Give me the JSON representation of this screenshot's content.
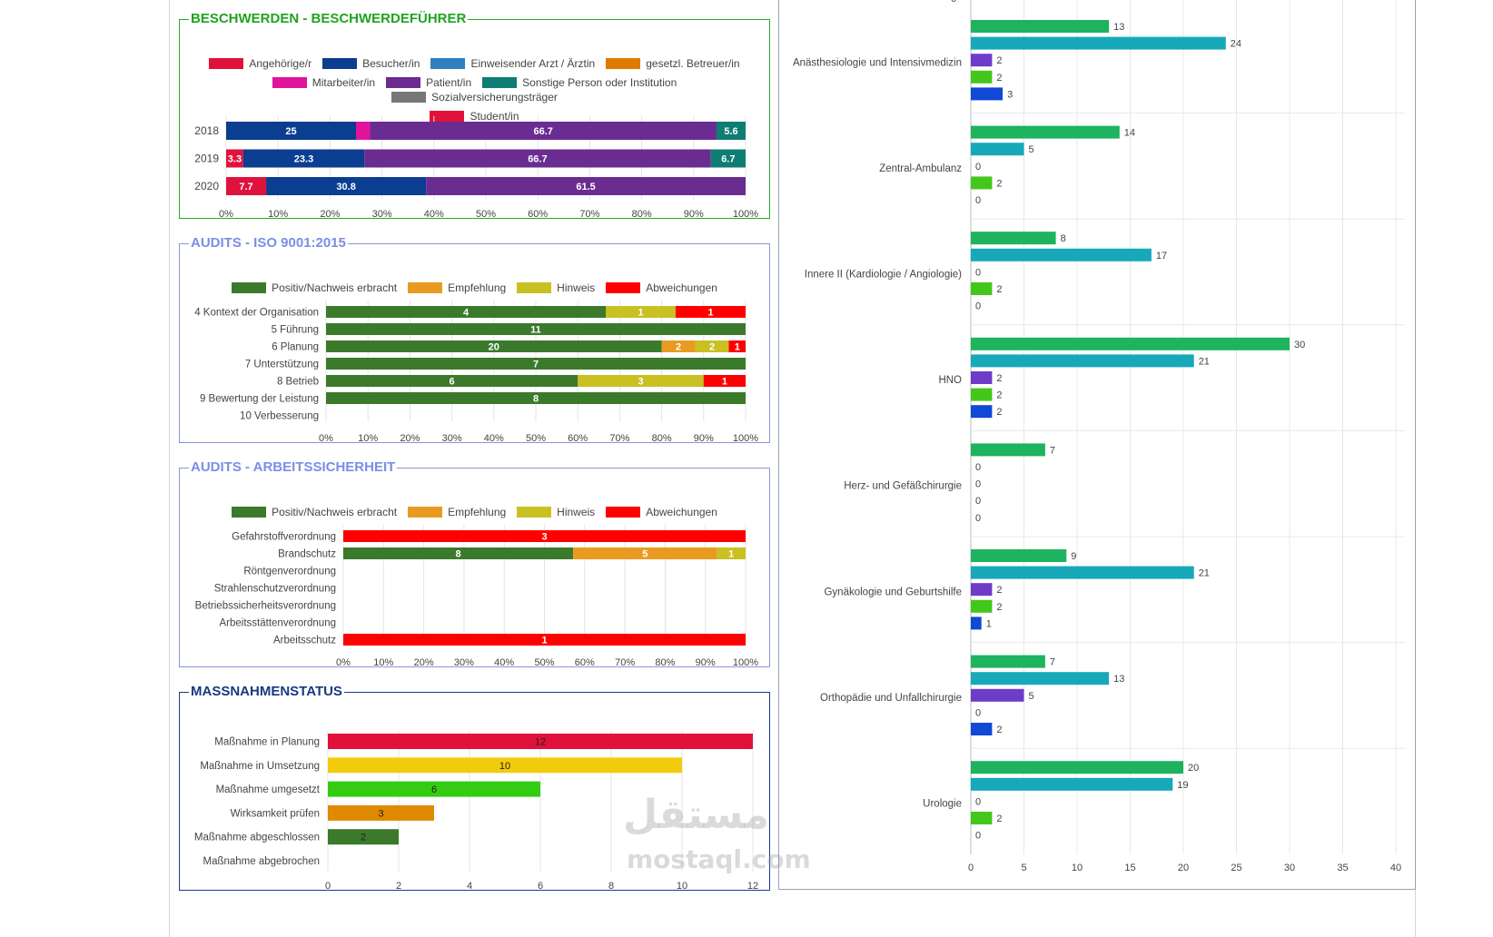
{
  "chart_data": [
    {
      "id": "complaints",
      "type": "bar",
      "orientation": "horizontal",
      "stacked": "percent",
      "title": "BESCHWERDEN - BESCHWERDEFÜHRER",
      "categories": [
        "2018",
        "2019",
        "2020"
      ],
      "xlim": [
        0,
        100
      ],
      "ticks": [
        "0%",
        "10%",
        "20%",
        "30%",
        "40%",
        "50%",
        "60%",
        "70%",
        "80%",
        "90%",
        "100%"
      ],
      "legend_position": "top",
      "series": [
        {
          "name": "Angehörige/r",
          "color": "#e0123c",
          "values": [
            0,
            3.3,
            7.7
          ],
          "labels": [
            "",
            "3.3",
            "7.7"
          ]
        },
        {
          "name": "Besucher/in",
          "color": "#0b3d91",
          "values": [
            25,
            23.3,
            30.8
          ],
          "labels": [
            "25",
            "23.3",
            "30.8"
          ]
        },
        {
          "name": "Einweisender Arzt / Ärztin",
          "color": "#2f7fc1",
          "values": [
            0,
            0,
            0
          ],
          "labels": [
            "",
            "",
            ""
          ]
        },
        {
          "name": "gesetzl. Betreuer/in",
          "color": "#e07b00",
          "values": [
            0,
            0,
            0
          ],
          "labels": [
            "",
            "",
            ""
          ]
        },
        {
          "name": "Mitarbeiter/in",
          "color": "#e0139b",
          "values": [
            2.7,
            0,
            0
          ],
          "labels": [
            "",
            "",
            ""
          ]
        },
        {
          "name": "Patient/in",
          "color": "#6b2c91",
          "values": [
            66.7,
            66.7,
            61.5
          ],
          "labels": [
            "66.7",
            "66.7",
            "61.5"
          ]
        },
        {
          "name": "Sonstige Person oder Institution",
          "color": "#0e7d74",
          "values": [
            5.6,
            6.7,
            0
          ],
          "labels": [
            "5.6",
            "6.7",
            ""
          ]
        },
        {
          "name": "Sozialversicherungsträger",
          "color": "#777777",
          "values": [
            0,
            0,
            0
          ],
          "labels": [
            "",
            "",
            ""
          ]
        },
        {
          "name": "Student/in",
          "color": "#e0123c",
          "values": [
            0,
            0,
            0
          ],
          "labels": [
            "",
            "",
            ""
          ]
        }
      ]
    },
    {
      "id": "iso",
      "type": "bar",
      "orientation": "horizontal",
      "stacked": "percent",
      "title": "AUDITS - ISO 9001:2015",
      "categories": [
        "4 Kontext der Organisation",
        "5 Führung",
        "6 Planung",
        "7 Unterstützung",
        "8 Betrieb",
        "9 Bewertung der Leistung",
        "10 Verbesserung"
      ],
      "xlim": [
        0,
        100
      ],
      "ticks": [
        "0%",
        "10%",
        "20%",
        "30%",
        "40%",
        "50%",
        "60%",
        "70%",
        "80%",
        "90%",
        "100%"
      ],
      "legend_position": "top",
      "series": [
        {
          "name": "Positiv/Nachweis erbracht",
          "color": "#3b7a2a",
          "values": [
            4,
            11,
            20,
            7,
            6,
            8,
            0
          ]
        },
        {
          "name": "Empfehlung",
          "color": "#e99b21",
          "values": [
            0,
            0,
            2,
            0,
            0,
            0,
            0
          ]
        },
        {
          "name": "Hinweis",
          "color": "#c9c022",
          "values": [
            1,
            0,
            2,
            0,
            3,
            0,
            0
          ]
        },
        {
          "name": "Abweichungen",
          "color": "#ff0000",
          "values": [
            1,
            0,
            1,
            0,
            1,
            0,
            0
          ]
        }
      ]
    },
    {
      "id": "safety",
      "type": "bar",
      "orientation": "horizontal",
      "stacked": "percent",
      "title": "AUDITS - ARBEITSSICHERHEIT",
      "categories": [
        "Gefahrstoffverordnung",
        "Brandschutz",
        "Röntgenverordnung",
        "Strahlenschutzverordnung",
        "Betriebssicherheitsverordnung",
        "Arbeitsstättenverordnung",
        "Arbeitsschutz"
      ],
      "xlim": [
        0,
        100
      ],
      "ticks": [
        "0%",
        "10%",
        "20%",
        "30%",
        "40%",
        "50%",
        "60%",
        "70%",
        "80%",
        "90%",
        "100%"
      ],
      "legend_position": "top",
      "series": [
        {
          "name": "Positiv/Nachweis erbracht",
          "color": "#3b7a2a",
          "values": [
            0,
            8,
            0,
            0,
            0,
            0,
            0
          ]
        },
        {
          "name": "Empfehlung",
          "color": "#e99b21",
          "values": [
            0,
            5,
            0,
            0,
            0,
            0,
            0
          ]
        },
        {
          "name": "Hinweis",
          "color": "#c9c022",
          "values": [
            0,
            1,
            0,
            0,
            0,
            0,
            0
          ]
        },
        {
          "name": "Abweichungen",
          "color": "#ff0000",
          "values": [
            3,
            0,
            0,
            0,
            0,
            0,
            1
          ]
        }
      ]
    },
    {
      "id": "measures",
      "type": "bar",
      "orientation": "horizontal",
      "title": "MASSNAHMENSTATUS",
      "categories": [
        "Maßnahme in Planung",
        "Maßnahme in Umsetzung",
        "Maßnahme umgesetzt",
        "Wirksamkeit prüfen",
        "Maßnahme abgeschlossen",
        "Maßnahme abgebrochen"
      ],
      "values": [
        12,
        10,
        6,
        3,
        2,
        0
      ],
      "colors": [
        "#e0123c",
        "#f2cc0c",
        "#33cc11",
        "#e08a00",
        "#3b7a2a",
        "#999999"
      ],
      "xlim": [
        0,
        12
      ],
      "ticks": [
        "0",
        "2",
        "4",
        "6",
        "8",
        "10",
        "12"
      ]
    },
    {
      "id": "departments",
      "type": "bar",
      "orientation": "horizontal",
      "grouped": true,
      "categories": [
        "Anästhesiologie und Intensivmedizin",
        "Zentral-Ambulanz",
        "Innere II (Kardiologie / Angiologie)",
        "HNO",
        "Herz- und Gefäßchirurgie",
        "Gynäkologie und Geburtshilfe",
        "Orthopädie und Unfallchirurgie",
        "Urologie"
      ],
      "series_colors": [
        "#1db35f",
        "#17a9b9",
        "#6f3bc9",
        "#44c71b",
        "#1049d6"
      ],
      "values": [
        [
          13,
          24,
          2,
          2,
          3
        ],
        [
          14,
          5,
          0,
          2,
          0
        ],
        [
          8,
          17,
          0,
          2,
          0
        ],
        [
          30,
          21,
          2,
          2,
          2
        ],
        [
          7,
          0,
          0,
          0,
          0
        ],
        [
          9,
          21,
          2,
          2,
          1
        ],
        [
          7,
          13,
          5,
          0,
          2
        ],
        [
          20,
          19,
          0,
          2,
          0
        ]
      ],
      "xlim": [
        0,
        40
      ],
      "ticks": [
        "0",
        "5",
        "10",
        "15",
        "20",
        "25",
        "30",
        "35",
        "40"
      ],
      "top_cut_label": "0"
    }
  ],
  "watermark": {
    "arabic": "مستقل",
    "latin": "mostaql.com"
  }
}
